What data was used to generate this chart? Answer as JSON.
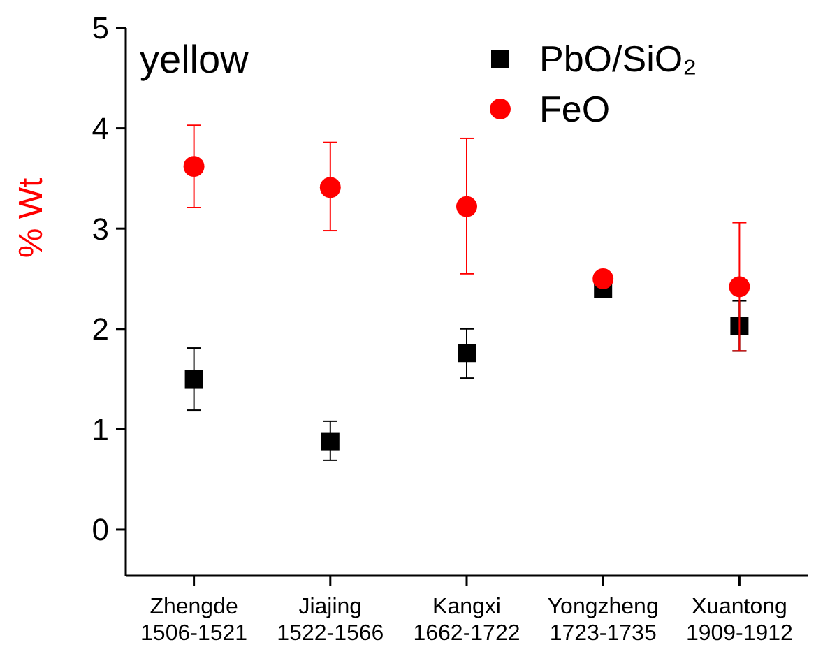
{
  "chart_data": {
    "type": "scatter",
    "ylabel": "% Wt",
    "annotations": [
      "yellow"
    ],
    "categories": [
      "Zhengde\n1506-1521",
      "Jiajing\n1522-1566",
      "Kangxi\n1662-1722",
      "Yongzheng\n1723-1735",
      "Xuantong\n1909-1912"
    ],
    "series": [
      {
        "name": "PbO/SiO₂",
        "color": "#000000",
        "marker": "square",
        "values": [
          1.5,
          0.88,
          1.76,
          2.4,
          2.03
        ],
        "errors": [
          [
            1.19,
            1.81
          ],
          [
            0.69,
            1.08
          ],
          [
            1.51,
            2.0
          ],
          null,
          [
            1.78,
            2.28
          ]
        ]
      },
      {
        "name": "FeO",
        "color": "#ff0000",
        "marker": "circle",
        "values": [
          3.62,
          3.41,
          3.22,
          2.5,
          2.42
        ],
        "errors": [
          [
            3.21,
            4.03
          ],
          [
            2.98,
            3.86
          ],
          [
            2.55,
            3.9
          ],
          null,
          [
            1.78,
            3.06
          ]
        ]
      }
    ],
    "ylim": [
      -0.46,
      5
    ],
    "yticks": [
      0,
      1,
      2,
      3,
      4,
      5
    ],
    "grid": false,
    "legend": "top right"
  }
}
